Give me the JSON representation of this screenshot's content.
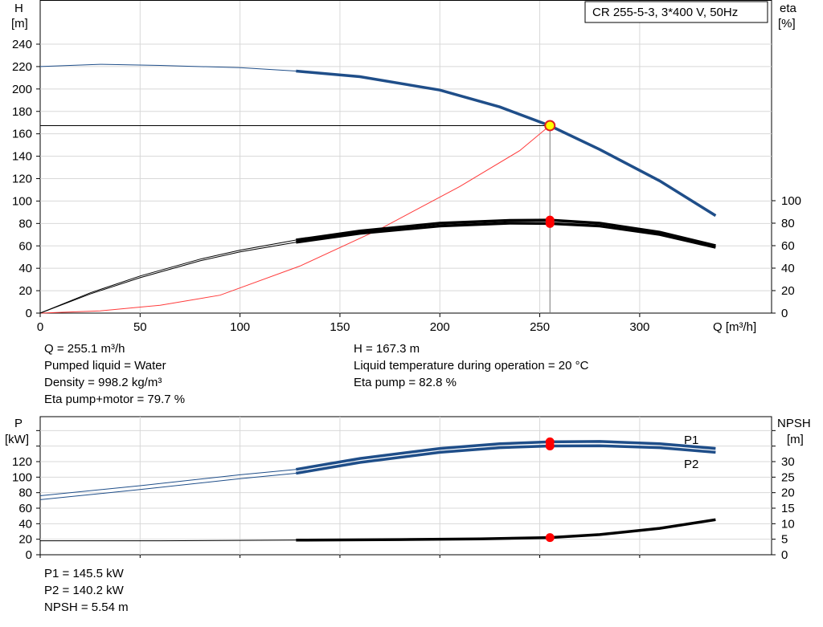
{
  "legend_box": "CR 255-5-3, 3*400 V, 50Hz",
  "colors": {
    "head": "#1f4e89",
    "eta": "#000000",
    "system": "#ff3b3b",
    "point_fill": "#ffff00",
    "point_stroke": "#e02020",
    "marker": "#ff0000",
    "grid": "#d8d8d8",
    "ref_line": "#000000"
  },
  "chart_data": [
    {
      "type": "line",
      "name": "head-efficiency",
      "xlabel": "Q [m³/h]",
      "ylabel": [
        "H",
        "[m]"
      ],
      "y2label": [
        "eta",
        "[%]"
      ],
      "xlim": [
        0,
        366
      ],
      "ylim": [
        0,
        250
      ],
      "xticks": [
        0,
        50,
        100,
        150,
        200,
        250,
        300
      ],
      "yticks": [
        0,
        20,
        40,
        60,
        80,
        100,
        120,
        140,
        160,
        180,
        200,
        220,
        240
      ],
      "y2ticks": [
        0,
        20,
        40,
        60,
        80,
        100
      ],
      "grid": true,
      "series": [
        {
          "key": "H",
          "color": "head",
          "points": [
            [
              0,
              220
            ],
            [
              30,
              222
            ],
            [
              60,
              221
            ],
            [
              100,
              219
            ],
            [
              128,
              216
            ],
            [
              160,
              211
            ],
            [
              200,
              199
            ],
            [
              230,
              184
            ],
            [
              255,
              167.3
            ],
            [
              280,
              146
            ],
            [
              310,
              118
            ],
            [
              338,
              87
            ]
          ]
        },
        {
          "key": "eta_pump",
          "color": "eta",
          "points": [
            [
              0,
              0
            ],
            [
              25,
              18
            ],
            [
              50,
              33
            ],
            [
              80,
              48
            ],
            [
              100,
              56
            ],
            [
              128,
              65
            ],
            [
              160,
              73
            ],
            [
              200,
              80
            ],
            [
              235,
              82.5
            ],
            [
              255,
              82.8
            ],
            [
              280,
              80
            ],
            [
              310,
              72
            ],
            [
              338,
              60
            ]
          ]
        },
        {
          "key": "eta_total",
          "color": "eta",
          "points": [
            [
              0,
              0
            ],
            [
              25,
              17
            ],
            [
              50,
              31.5
            ],
            [
              80,
              46.5
            ],
            [
              100,
              54.5
            ],
            [
              128,
              63
            ],
            [
              160,
              71
            ],
            [
              200,
              77.5
            ],
            [
              235,
              80
            ],
            [
              255,
              79.7
            ],
            [
              280,
              77.5
            ],
            [
              310,
              70
            ],
            [
              338,
              58.5
            ]
          ]
        },
        {
          "key": "system",
          "color": "system",
          "points": [
            [
              0,
              0
            ],
            [
              30,
              2
            ],
            [
              60,
              7
            ],
            [
              90,
              16
            ],
            [
              130,
              42
            ],
            [
              170,
              75
            ],
            [
              210,
              113
            ],
            [
              240,
              145
            ],
            [
              255,
              167.3
            ]
          ]
        }
      ],
      "duty_point": {
        "q": 255.1,
        "h": 167.3
      },
      "eta_markers": [
        82.8,
        79.7
      ]
    },
    {
      "type": "line",
      "name": "power-npsh",
      "ylabel": [
        "P",
        "[kW]"
      ],
      "y2label": [
        "NPSH",
        "[m]"
      ],
      "xlim": [
        0,
        366
      ],
      "ylim": [
        0,
        176
      ],
      "yticks": [
        0,
        20,
        40,
        60,
        80,
        100,
        120
      ],
      "y2lim": [
        0,
        45
      ],
      "y2ticks": [
        0,
        5,
        10,
        15,
        20,
        25,
        30
      ],
      "grid": true,
      "series": [
        {
          "key": "P1",
          "name": "P1",
          "color": "head",
          "points": [
            [
              0,
              76
            ],
            [
              50,
              89
            ],
            [
              100,
              103
            ],
            [
              128,
              110
            ],
            [
              160,
              124
            ],
            [
              200,
              137
            ],
            [
              230,
              143
            ],
            [
              255,
              145.5
            ],
            [
              280,
              146
            ],
            [
              310,
              143
            ],
            [
              338,
              137
            ]
          ]
        },
        {
          "key": "P2",
          "name": "P2",
          "color": "head",
          "points": [
            [
              0,
              71
            ],
            [
              50,
              84
            ],
            [
              100,
              98
            ],
            [
              128,
              105
            ],
            [
              160,
              119
            ],
            [
              200,
              132
            ],
            [
              230,
              138
            ],
            [
              255,
              140.2
            ],
            [
              280,
              140.5
            ],
            [
              310,
              138
            ],
            [
              338,
              132
            ]
          ]
        },
        {
          "key": "NPSH",
          "color": "eta",
          "axis": "y2",
          "points": [
            [
              0,
              4.5
            ],
            [
              60,
              4.5
            ],
            [
              128,
              4.7
            ],
            [
              180,
              4.9
            ],
            [
              220,
              5.1
            ],
            [
              255,
              5.54
            ],
            [
              280,
              6.5
            ],
            [
              310,
              8.5
            ],
            [
              338,
              11.3
            ]
          ]
        }
      ],
      "markers_p": [
        145.5,
        140.2
      ],
      "marker_npsh": 5.54
    }
  ],
  "info_top_left": [
    "Q = 255.1 m³/h",
    "Pumped liquid = Water",
    "Density = 998.2 kg/m³",
    "Eta pump+motor = 79.7 %"
  ],
  "info_top_right": [
    "H = 167.3 m",
    "Liquid temperature during operation = 20 °C",
    "Eta pump = 82.8 %"
  ],
  "info_bottom": [
    "P1 = 145.5 kW",
    "P2 = 140.2 kW",
    "NPSH = 5.54 m"
  ]
}
